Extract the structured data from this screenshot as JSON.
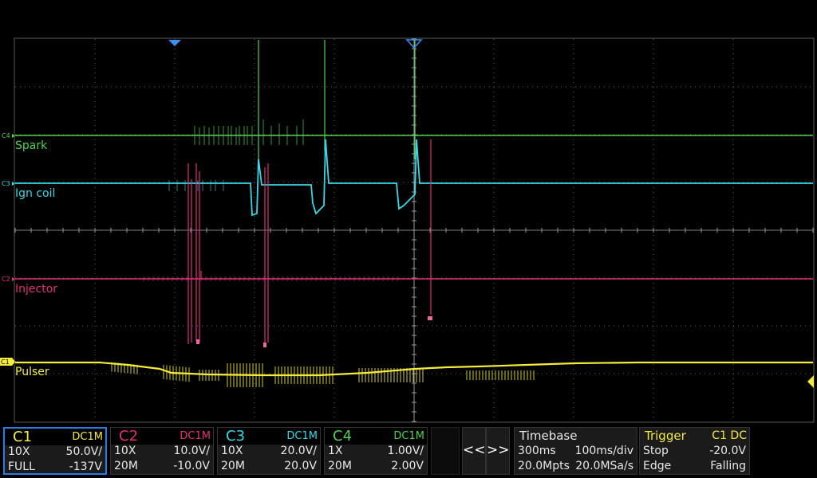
{
  "colors": {
    "c1": "#f5ec3a",
    "c2": "#e0307a",
    "c3": "#35d8e8",
    "c4": "#4fd24f",
    "grid": "#8a8a8a",
    "cursor": "#3a8ff0"
  },
  "traces": [
    {
      "marker": "C4",
      "label": "Spark"
    },
    {
      "marker": "C3",
      "label": "Ign coil"
    },
    {
      "marker": "C2",
      "label": "Injector"
    },
    {
      "marker": "C1",
      "label": "Pulser"
    }
  ],
  "channels": [
    {
      "name": "C1",
      "coupling": "DC1M",
      "probe": "10X",
      "scale": "50.0V/",
      "bw": "FULL",
      "offset": "-137V"
    },
    {
      "name": "C2",
      "coupling": "DC1M",
      "probe": "10X",
      "scale": "10.0V/",
      "bw": "20M",
      "offset": "-10.0V"
    },
    {
      "name": "C3",
      "coupling": "DC1M",
      "probe": "10X",
      "scale": "20.0V/",
      "bw": "20M",
      "offset": "20.0V"
    },
    {
      "name": "C4",
      "coupling": "DC1M",
      "probe": "1X",
      "scale": "1.00V/",
      "bw": "20M",
      "offset": "2.00V"
    }
  ],
  "nav": {
    "prev": "<<",
    "next": ">>"
  },
  "timebase": {
    "title": "Timebase",
    "delay": "300ms",
    "scale": "100ms/div",
    "points": "20.0Mpts",
    "rate": "20.0MSa/s"
  },
  "trigger": {
    "title": "Trigger",
    "source": "C1 DC",
    "state": "Stop",
    "level": "-20.0V",
    "type": "Edge",
    "slope": "Falling"
  }
}
